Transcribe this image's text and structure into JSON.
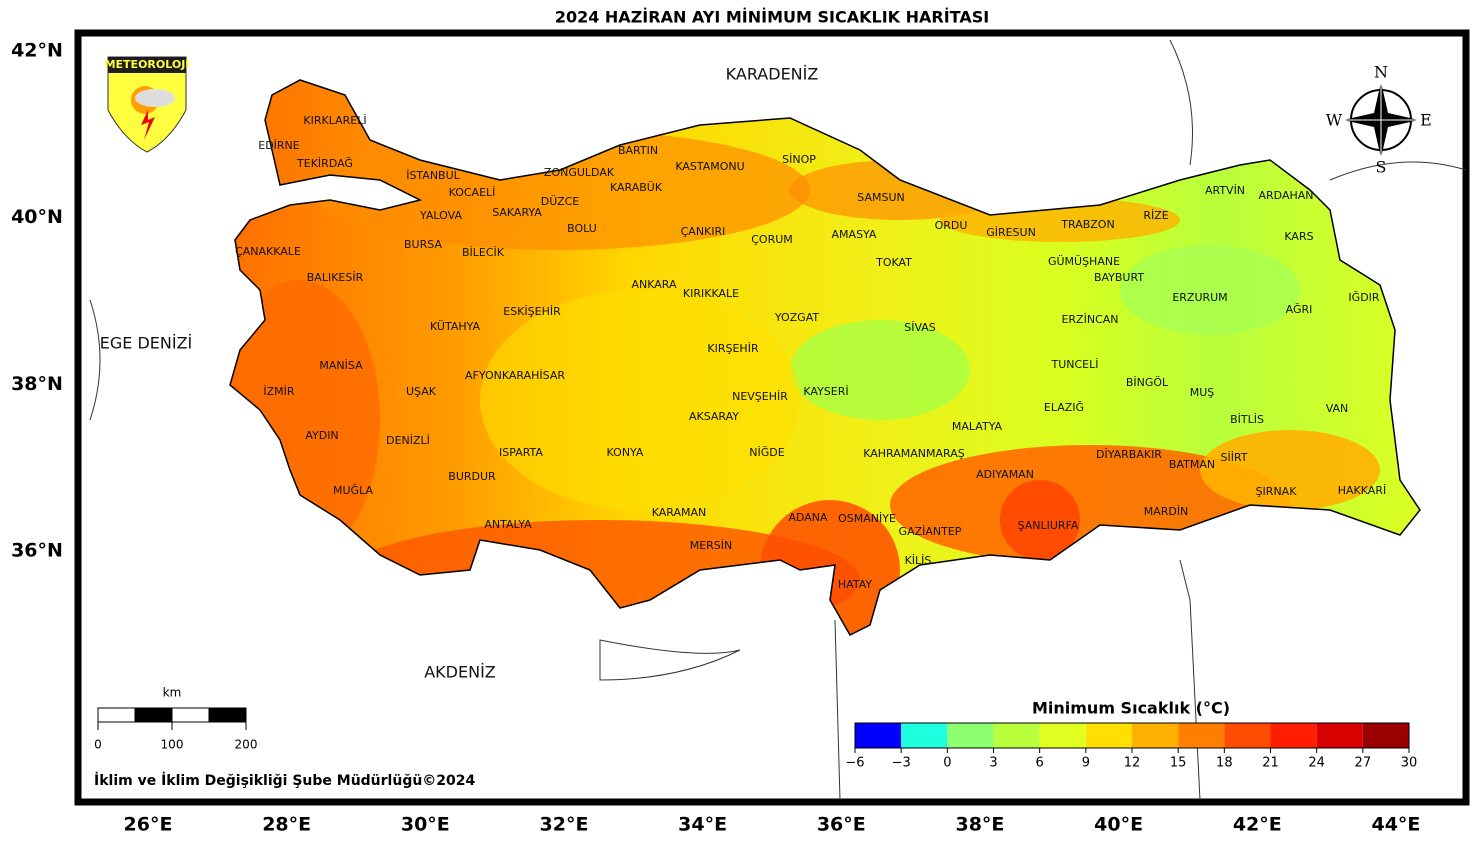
{
  "title": "2024 HAZİRAN AYI MİNİMUM SICAKLIK HARİTASI",
  "logo": "METEOROLOJİ",
  "seas": [
    "KARADENİZ",
    "EGE DENİZİ",
    "AKDENİZ"
  ],
  "provinces": [
    "EDİRNE",
    "KIRKLARELİ",
    "TEKİRDAĞ",
    "İSTANBUL",
    "KOCAELİ",
    "YALOVA",
    "SAKARYA",
    "ZONGULDAK",
    "BARTIN",
    "KASTAMONU",
    "SİNOP",
    "KARABÜK",
    "DÜZCE",
    "BOLU",
    "ÇANAKKALE",
    "BURSA",
    "BİLECİK",
    "ÇANKIRI",
    "ÇORUM",
    "SAMSUN",
    "AMASYA",
    "ORDU",
    "GİRESUN",
    "TRABZON",
    "RİZE",
    "ARTVİN",
    "ARDAHAN",
    "KARS",
    "BALIKESİR",
    "ANKARA",
    "KIRIKKALE",
    "TOKAT",
    "GÜMÜŞHANE",
    "BAYBURT",
    "ERZURUM",
    "IĞDIR",
    "AĞRI",
    "KÜTAHYA",
    "ESKİŞEHİR",
    "YOZGAT",
    "SİVAS",
    "ERZİNCAN",
    "MANİSA",
    "KIRŞEHİR",
    "TUNCELİ",
    "AFYONKARAHİSAR",
    "İZMİR",
    "UŞAK",
    "KAYSERİ",
    "NEVŞEHİR",
    "BİNGÖL",
    "MUŞ",
    "VAN",
    "ELAZIĞ",
    "AKSARAY",
    "BİTLİS",
    "MALATYA",
    "AYDIN",
    "DENİZLİ",
    "ISPARTA",
    "KONYA",
    "NİĞDE",
    "KAHRAMANMARAŞ",
    "DİYARBAKIR",
    "SİİRT",
    "BATMAN",
    "ADIYAMAN",
    "BURDUR",
    "ŞIRNAK",
    "HAKKARİ",
    "MUĞLA",
    "KARAMAN",
    "MARDİN",
    "ADANA",
    "OSMANİYE",
    "ŞANLIURFA",
    "ANTALYA",
    "GAZİANTEP",
    "MERSİN",
    "KİLİS",
    "HATAY"
  ],
  "lat_labels": [
    {
      "value": 42,
      "label": "42°N"
    },
    {
      "value": 40,
      "label": "40°N"
    },
    {
      "value": 38,
      "label": "38°N"
    },
    {
      "value": 36,
      "label": "36°N"
    }
  ],
  "lon_labels": [
    {
      "value": 26,
      "label": "26°E"
    },
    {
      "value": 28,
      "label": "28°E"
    },
    {
      "value": 30,
      "label": "30°E"
    },
    {
      "value": 32,
      "label": "32°E"
    },
    {
      "value": 34,
      "label": "34°E"
    },
    {
      "value": 36,
      "label": "36°E"
    },
    {
      "value": 38,
      "label": "38°E"
    },
    {
      "value": 40,
      "label": "40°E"
    },
    {
      "value": 42,
      "label": "42°E"
    },
    {
      "value": 44,
      "label": "44°E"
    }
  ],
  "compass": {
    "n": "N",
    "s": "S",
    "w": "W",
    "e": "E"
  },
  "scale_bar": {
    "unit": "km",
    "ticks": [
      0,
      100,
      200
    ]
  },
  "colorbar": {
    "title": "Minimum Sıcaklık (°C)",
    "ticks": [
      {
        "value": -6,
        "label": "−6"
      },
      {
        "value": -3,
        "label": "−3"
      },
      0,
      3,
      6,
      9,
      12,
      15,
      18,
      21,
      24,
      27,
      30
    ],
    "colors": [
      "#0000ff",
      "#1effe0",
      "#8eff6e",
      "#b8ff3c",
      "#e0ff20",
      "#ffe000",
      "#ffb000",
      "#ff8000",
      "#ff4c00",
      "#ff1e00",
      "#d80000",
      "#9a0000"
    ]
  },
  "credit": "İklim ve İklim Değişikliği Şube Müdürlüğü©2024"
}
